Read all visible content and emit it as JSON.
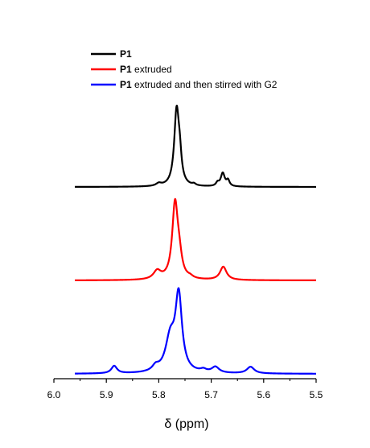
{
  "chart_data": {
    "type": "line",
    "xlabel": "δ (ppm)",
    "xlim": [
      6.0,
      5.5
    ],
    "x_reversed": true,
    "xticks": [
      6.0,
      5.9,
      5.8,
      5.7,
      5.6,
      5.5
    ],
    "xtick_labels": [
      "6.0",
      "5.9",
      "5.8",
      "5.7",
      "5.6",
      "5.5"
    ],
    "x_range_plotted": [
      5.96,
      5.5
    ],
    "y_axis_shown": false,
    "grid": false,
    "legend_position": "top-center",
    "stacked_offsets": [
      2.0,
      1.0,
      0.0
    ],
    "series": [
      {
        "name_bold": "P1",
        "name_rest": "",
        "color": "#000000",
        "peaks": [
          {
            "x": 5.766,
            "height": 0.9,
            "width": 0.0055
          },
          {
            "x": 5.76,
            "height": 0.25,
            "width": 0.004
          },
          {
            "x": 5.8,
            "height": 0.03,
            "width": 0.006
          },
          {
            "x": 5.733,
            "height": 0.02,
            "width": 0.004
          },
          {
            "x": 5.678,
            "height": 0.16,
            "width": 0.0045
          },
          {
            "x": 5.668,
            "height": 0.07,
            "width": 0.0035
          },
          {
            "x": 5.688,
            "height": 0.04,
            "width": 0.0035
          }
        ]
      },
      {
        "name_bold": "P1",
        "name_rest": " extruded",
        "color": "#ff0000",
        "peaks": [
          {
            "x": 5.769,
            "height": 0.9,
            "width": 0.0065
          },
          {
            "x": 5.761,
            "height": 0.2,
            "width": 0.006
          },
          {
            "x": 5.803,
            "height": 0.1,
            "width": 0.0085
          },
          {
            "x": 5.677,
            "height": 0.16,
            "width": 0.0075
          },
          {
            "x": 5.74,
            "height": 0.02,
            "width": 0.006
          }
        ]
      },
      {
        "name_bold": "P1",
        "name_rest": " extruded and then stirred with G2",
        "color": "#0000ff",
        "peaks": [
          {
            "x": 5.762,
            "height": 0.9,
            "width": 0.0075
          },
          {
            "x": 5.778,
            "height": 0.4,
            "width": 0.011
          },
          {
            "x": 5.806,
            "height": 0.06,
            "width": 0.0075
          },
          {
            "x": 5.885,
            "height": 0.09,
            "width": 0.0065
          },
          {
            "x": 5.692,
            "height": 0.07,
            "width": 0.0085
          },
          {
            "x": 5.625,
            "height": 0.08,
            "width": 0.0085
          },
          {
            "x": 5.715,
            "height": 0.03,
            "width": 0.007
          }
        ]
      }
    ]
  }
}
